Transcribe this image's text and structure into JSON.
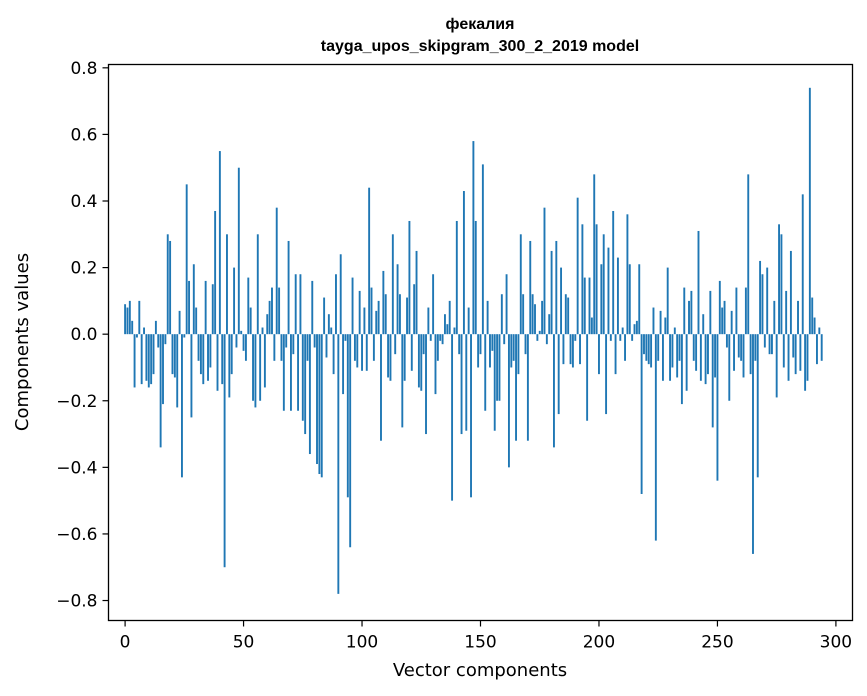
{
  "chart_data": {
    "type": "bar",
    "title": "фекалия",
    "subtitle": "tayga_upos_skipgram_300_2_2019 model",
    "xlabel": "Vector components",
    "ylabel": "Components values",
    "xlim": [
      -7,
      307
    ],
    "ylim": [
      -0.86,
      0.81
    ],
    "xticks": [
      0,
      50,
      100,
      150,
      200,
      250,
      300
    ],
    "xtick_labels": [
      "0",
      "50",
      "100",
      "150",
      "200",
      "250",
      "300"
    ],
    "yticks": [
      -0.8,
      -0.6,
      -0.4,
      -0.2,
      0.0,
      0.2,
      0.4,
      0.6,
      0.8
    ],
    "ytick_labels": [
      "−0.8",
      "−0.6",
      "−0.4",
      "−0.2",
      "0.0",
      "0.2",
      "0.4",
      "0.6",
      "0.8"
    ],
    "bar_color": "#1f77b4",
    "grid": false,
    "x": "0..299",
    "values": [
      0.09,
      0.08,
      0.1,
      0.04,
      -0.16,
      -0.01,
      0.1,
      -0.15,
      0.02,
      -0.14,
      -0.16,
      -0.15,
      -0.12,
      0.04,
      -0.04,
      -0.34,
      -0.21,
      -0.03,
      0.3,
      0.28,
      -0.12,
      -0.13,
      -0.22,
      0.07,
      -0.43,
      -0.01,
      0.45,
      0.16,
      -0.25,
      0.21,
      0.08,
      -0.08,
      -0.12,
      -0.15,
      0.16,
      -0.14,
      -0.1,
      0.15,
      0.37,
      -0.17,
      0.55,
      -0.15,
      -0.7,
      0.3,
      -0.19,
      -0.12,
      0.2,
      -0.04,
      0.5,
      0.01,
      -0.05,
      -0.08,
      0.17,
      0.08,
      -0.2,
      -0.22,
      0.3,
      -0.2,
      0.02,
      -0.16,
      0.06,
      0.1,
      0.14,
      -0.08,
      0.38,
      0.14,
      -0.08,
      -0.23,
      -0.04,
      0.28,
      -0.23,
      -0.06,
      0.18,
      -0.23,
      0.18,
      -0.26,
      -0.3,
      -0.08,
      -0.36,
      0.16,
      -0.04,
      -0.39,
      -0.42,
      -0.43,
      0.11,
      -0.07,
      0.06,
      0.02,
      -0.12,
      0.18,
      -0.78,
      0.24,
      -0.18,
      -0.02,
      -0.49,
      -0.64,
      0.17,
      -0.08,
      -0.1,
      0.13,
      -0.11,
      0.08,
      -0.11,
      0.44,
      0.14,
      -0.08,
      0.07,
      0.1,
      -0.32,
      0.19,
      0.12,
      -0.13,
      -0.14,
      0.3,
      -0.06,
      0.21,
      0.12,
      -0.28,
      -0.14,
      0.11,
      0.34,
      -0.11,
      0.15,
      0.25,
      -0.16,
      -0.17,
      -0.06,
      -0.3,
      0.08,
      -0.02,
      0.18,
      -0.18,
      -0.08,
      -0.02,
      -0.03,
      0.06,
      0.03,
      0.1,
      -0.5,
      0.02,
      0.34,
      -0.06,
      -0.3,
      0.43,
      -0.29,
      0.08,
      -0.49,
      0.58,
      0.34,
      -0.1,
      -0.06,
      0.51,
      -0.23,
      0.1,
      -0.1,
      -0.05,
      -0.29,
      -0.2,
      -0.2,
      0.12,
      -0.03,
      0.18,
      -0.4,
      -0.1,
      -0.08,
      -0.32,
      -0.12,
      0.3,
      0.12,
      -0.06,
      -0.32,
      0.28,
      0.12,
      0.09,
      -0.02,
      0.01,
      0.1,
      0.38,
      -0.03,
      0.06,
      0.25,
      -0.34,
      0.28,
      -0.24,
      0.2,
      -0.09,
      0.12,
      0.11,
      -0.09,
      -0.1,
      -0.02,
      0.41,
      -0.09,
      0.33,
      0.17,
      -0.26,
      0.17,
      0.05,
      0.48,
      0.33,
      -0.12,
      0.21,
      0.3,
      -0.24,
      0.26,
      -0.02,
      0.37,
      -0.12,
      0.23,
      -0.02,
      0.02,
      -0.08,
      0.36,
      0.21,
      -0.02,
      0.03,
      0.04,
      0.21,
      -0.48,
      -0.06,
      -0.08,
      -0.09,
      -0.1,
      0.08,
      -0.62,
      -0.08,
      0.07,
      -0.14,
      0.05,
      0.2,
      -0.14,
      -0.1,
      0.02,
      -0.13,
      -0.08,
      -0.21,
      0.14,
      -0.17,
      0.1,
      0.13,
      -0.08,
      -0.11,
      0.31,
      -0.14,
      0.06,
      -0.15,
      -0.12,
      0.13,
      -0.28,
      -0.13,
      -0.44,
      0.16,
      0.08,
      0.1,
      -0.04,
      -0.2,
      0.07,
      -0.11,
      0.14,
      -0.07,
      -0.08,
      -0.13,
      0.14,
      0.48,
      -0.12,
      -0.66,
      -0.08,
      -0.43,
      0.22,
      0.18,
      -0.04,
      0.2,
      -0.06,
      -0.06,
      0.1,
      -0.19,
      0.33,
      0.3,
      -0.1,
      0.13,
      -0.14,
      0.25,
      -0.07,
      -0.12,
      0.1,
      -0.11,
      0.42,
      -0.17,
      -0.14,
      0.74,
      0.11,
      0.05,
      -0.09,
      0.02,
      -0.08
    ]
  }
}
